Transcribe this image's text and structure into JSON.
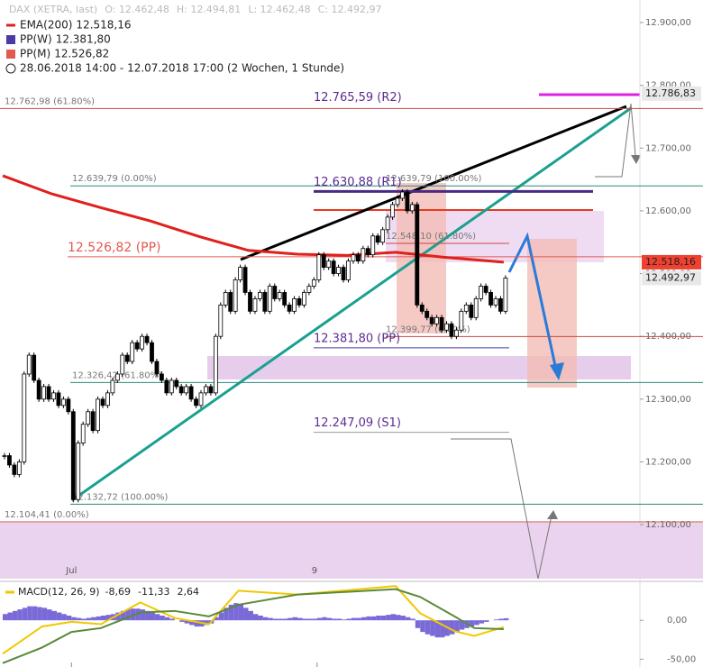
{
  "chart_data": {
    "type": "candlestick",
    "header": {
      "symbol": "DAX (XETRA, last)",
      "open": "O: 12.462,48",
      "high": "H: 12.494,81",
      "low": "L: 12.462,48",
      "close": "C: 12.492,97"
    },
    "legend": [
      {
        "name": "EMA(200)",
        "label": "12.518,16",
        "color": "#e0201c"
      },
      {
        "name": "PP(W)",
        "label": "12.381,80",
        "color": "#4a3aa8"
      },
      {
        "name": "PP(M)",
        "label": "12.526,82",
        "color": "#e05a50"
      }
    ],
    "period": "28.06.2018 14:00 - 12.07.2018 17:00  (2 Wochen, 1 Stunde)",
    "ylim": [
      12014,
      12900
    ],
    "yticks": [
      {
        "value": 12900,
        "label": "12.900,00"
      },
      {
        "value": 12800,
        "label": "12.800,00"
      },
      {
        "value": 12700,
        "label": "12.700,00"
      },
      {
        "value": 12600,
        "label": "12.600,00"
      },
      {
        "value": 12500,
        "label": "12.500,00"
      },
      {
        "value": 12400,
        "label": "12.400,00"
      },
      {
        "value": 12300,
        "label": "12.300,00"
      },
      {
        "value": 12200,
        "label": "12.200,00"
      },
      {
        "value": 12100,
        "label": "12.100,00"
      }
    ],
    "x_labels": [
      {
        "index": 14,
        "label": "Jul"
      },
      {
        "index": 64,
        "label": "9"
      }
    ],
    "close": [
      12210,
      12195,
      12180,
      12200,
      12340,
      12370,
      12330,
      12300,
      12320,
      12300,
      12310,
      12290,
      12300,
      12280,
      12140,
      12230,
      12260,
      12280,
      12250,
      12300,
      12290,
      12310,
      12330,
      12340,
      12370,
      12360,
      12390,
      12380,
      12400,
      12390,
      12360,
      12340,
      12330,
      12310,
      12330,
      12320,
      12310,
      12320,
      12300,
      12290,
      12310,
      12320,
      12310,
      12400,
      12450,
      12470,
      12440,
      12490,
      12510,
      12470,
      12440,
      12460,
      12470,
      12440,
      12480,
      12460,
      12470,
      12450,
      12440,
      12460,
      12450,
      12470,
      12480,
      12490,
      12530,
      12510,
      12520,
      12500,
      12510,
      12490,
      12520,
      12530,
      12520,
      12540,
      12530,
      12560,
      12550,
      12570,
      12590,
      12610,
      12620,
      12630,
      12600,
      12610,
      12450,
      12440,
      12430,
      12420,
      12430,
      12410,
      12420,
      12400,
      12410,
      12440,
      12450,
      12430,
      12460,
      12480,
      12470,
      12450,
      12460,
      12440,
      12492.97
    ],
    "ema": {
      "color": "#e0201c",
      "index": [
        0,
        10,
        20,
        30,
        40,
        50,
        60,
        70,
        80,
        90,
        102
      ],
      "values": [
        12656,
        12627,
        12605,
        12584,
        12559,
        12537,
        12531,
        12529,
        12534,
        12526,
        12518.16
      ]
    },
    "levels": [
      {
        "label": "12.762,98 (61.80%)",
        "value": 12762.98,
        "color": "#777777",
        "line": "#c84a40"
      },
      {
        "label": "12.765,59 (R2)",
        "value": 12765.59,
        "color": "#5b2d90",
        "line": null
      },
      {
        "label": "12.639,79 (0.00%)",
        "value": 12639.79,
        "color": "#777777",
        "line": "#2a8a7a"
      },
      {
        "label": "12.630,88 (R1)",
        "value": 12630.88,
        "color": "#5b2d90",
        "line": "#4a2a80"
      },
      {
        "label": "12.639,79 (100.00%)",
        "value": 12639.79,
        "color": "#777777",
        "line": null
      },
      {
        "label": "12.548,10 (61.80%)",
        "value": 12548.1,
        "color": "#777777",
        "line": "#c84a40"
      },
      {
        "label": "12.526,82 (PP)",
        "value": 12526.82,
        "color": "#e05a50",
        "line": "#e05a50"
      },
      {
        "label": "12.399,77 (0.00%)",
        "value": 12399.77,
        "color": "#777777",
        "line": "#c84a40"
      },
      {
        "label": "12.381,80 (PP)",
        "value": 12381.8,
        "color": "#5b2d90",
        "line": "#4a3aa8"
      },
      {
        "label": "12.326,42 (61.80%)",
        "value": 12326.42,
        "color": "#777777",
        "line": "#2a8a7a"
      },
      {
        "label": "12.247,09 (S1)",
        "value": 12247.09,
        "color": "#5b2d90",
        "line": "#999999"
      },
      {
        "label": "12.132,72 (100.00%)",
        "value": 12132.72,
        "color": "#777777",
        "line": "#2a8a7a"
      },
      {
        "label": "12.104,41 (0.00%)",
        "value": 12104.41,
        "color": "#777777",
        "line": "#c84a40"
      }
    ],
    "price_tags": [
      {
        "value": 12786.83,
        "label": "12.786,83",
        "color": "#e8e8e8"
      },
      {
        "value": 12518.16,
        "label": "12.518,16",
        "color": "#f04030"
      },
      {
        "value": 12492.97,
        "label": "12.492,97",
        "color": "#e8e8e8"
      }
    ],
    "macd": {
      "title": "MACD(12, 26, 9)",
      "ylim": [
        -60,
        50
      ],
      "yticks": [
        {
          "value": 0,
          "label": "0,00"
        },
        {
          "value": -50,
          "label": "-50,00"
        }
      ],
      "readouts": [
        {
          "value": -8.69,
          "label": "-8,69",
          "color": "#333"
        },
        {
          "value": -11.33,
          "label": "-11,33",
          "color": "#333"
        },
        {
          "value": 2.64,
          "label": "2,64",
          "color": "#333"
        }
      ],
      "histogram": [
        8,
        10,
        12,
        14,
        16,
        18,
        18,
        17,
        16,
        14,
        12,
        10,
        8,
        6,
        4,
        3,
        2,
        3,
        4,
        5,
        6,
        7,
        8,
        10,
        12,
        14,
        15,
        15,
        14,
        12,
        10,
        8,
        6,
        4,
        2,
        0,
        -2,
        -4,
        -6,
        -8,
        -8,
        -6,
        -4,
        4,
        10,
        16,
        20,
        22,
        20,
        16,
        12,
        8,
        6,
        4,
        3,
        2,
        2,
        2,
        3,
        4,
        3,
        2,
        2,
        2,
        3,
        4,
        3,
        2,
        2,
        1,
        2,
        3,
        3,
        4,
        5,
        5,
        6,
        6,
        7,
        8,
        7,
        6,
        4,
        2,
        -10,
        -15,
        -18,
        -20,
        -22,
        -22,
        -20,
        -18,
        -15,
        -12,
        -10,
        -8,
        -6,
        -4,
        -2,
        0,
        1,
        2,
        2.64
      ],
      "hist_color": "#7a6ad8",
      "macd_line": {
        "color": "#f0c800",
        "index": [
          0,
          8,
          14,
          20,
          28,
          35,
          42,
          48,
          60,
          80,
          85,
          92,
          96,
          102
        ],
        "values": [
          -43,
          -8,
          -2,
          -5,
          23,
          3,
          -5,
          38,
          33,
          44,
          9,
          -14,
          -20,
          -8.69
        ]
      },
      "signal_line": {
        "color": "#5a8a3a",
        "index": [
          0,
          8,
          14,
          20,
          28,
          35,
          42,
          48,
          60,
          80,
          85,
          92,
          96,
          102
        ],
        "values": [
          -55,
          -35,
          -15,
          -10,
          10,
          12,
          5,
          20,
          33,
          40,
          30,
          5,
          -10,
          -11.33
        ]
      }
    }
  }
}
